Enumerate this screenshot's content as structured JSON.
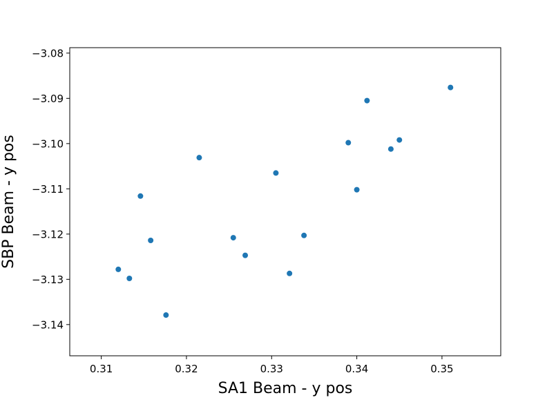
{
  "chart_data": {
    "type": "scatter",
    "xlabel": "SA1 Beam - y pos",
    "ylabel": "SBP Beam - y pos",
    "xlim": [
      0.3063,
      0.3569
    ],
    "ylim": [
      -3.1469,
      -3.0788
    ],
    "xticks": [
      0.31,
      0.32,
      0.33,
      0.34,
      0.35
    ],
    "xtick_labels": [
      "0.31",
      "0.32",
      "0.33",
      "0.34",
      "0.35"
    ],
    "yticks": [
      -3.08,
      -3.09,
      -3.1,
      -3.11,
      -3.12,
      -3.13,
      -3.14
    ],
    "ytick_labels": [
      "−3.08",
      "−3.09",
      "−3.10",
      "−3.11",
      "−3.12",
      "−3.13",
      "−3.14"
    ],
    "grid": false,
    "series": [
      {
        "color": "#1f77b4",
        "points": [
          {
            "x": 0.312,
            "y": -3.1278
          },
          {
            "x": 0.3133,
            "y": -3.1298
          },
          {
            "x": 0.3146,
            "y": -3.1116
          },
          {
            "x": 0.3158,
            "y": -3.1214
          },
          {
            "x": 0.3176,
            "y": -3.1379
          },
          {
            "x": 0.3215,
            "y": -3.1031
          },
          {
            "x": 0.3255,
            "y": -3.1208
          },
          {
            "x": 0.3269,
            "y": -3.1247
          },
          {
            "x": 0.3305,
            "y": -3.1065
          },
          {
            "x": 0.3321,
            "y": -3.1287
          },
          {
            "x": 0.3338,
            "y": -3.1203
          },
          {
            "x": 0.339,
            "y": -3.0998
          },
          {
            "x": 0.34,
            "y": -3.1102
          },
          {
            "x": 0.3412,
            "y": -3.0905
          },
          {
            "x": 0.344,
            "y": -3.1012
          },
          {
            "x": 0.345,
            "y": -3.0992
          },
          {
            "x": 0.351,
            "y": -3.0876
          }
        ]
      }
    ]
  }
}
